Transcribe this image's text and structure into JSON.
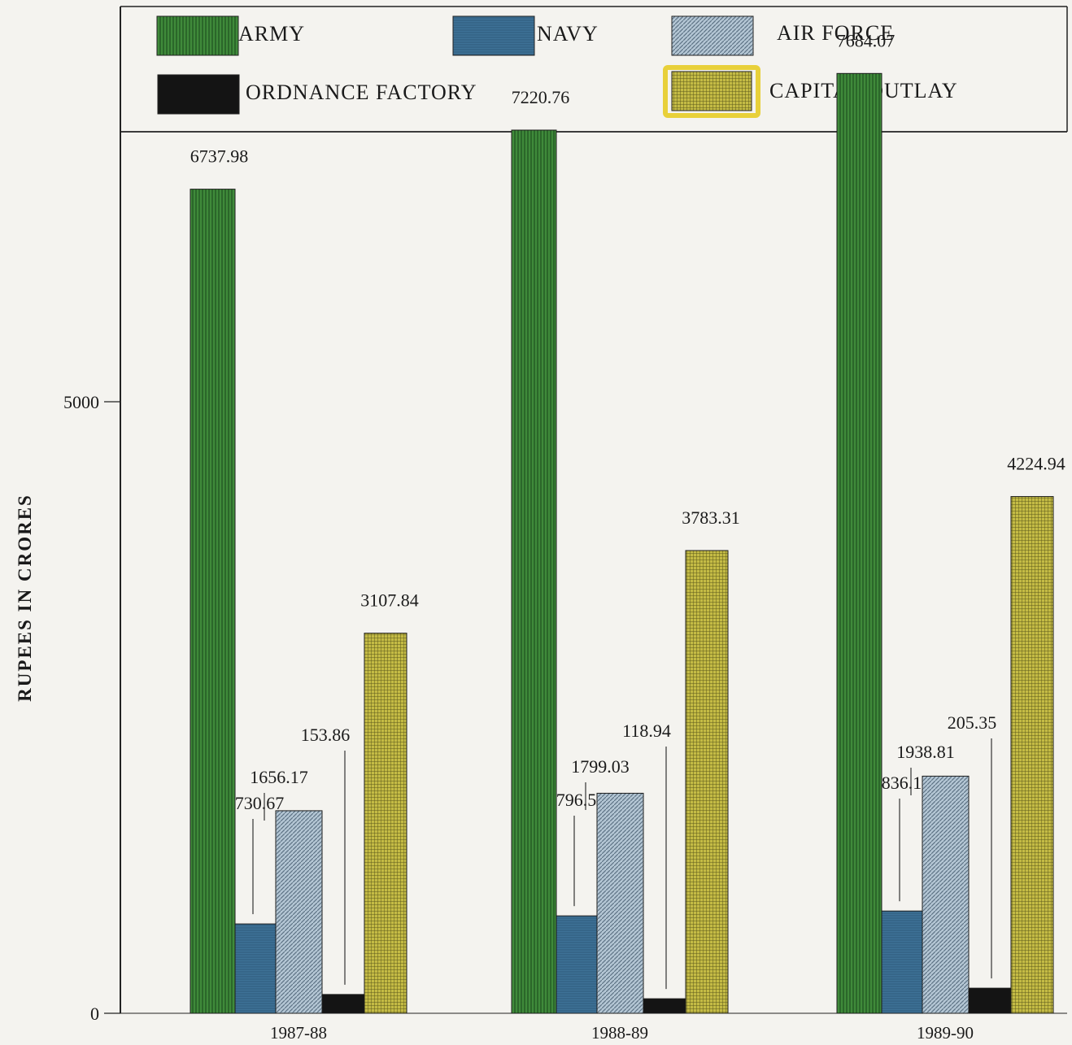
{
  "chart_data": {
    "type": "bar",
    "title": "",
    "xlabel": "",
    "ylabel": "RUPEES IN CRORES",
    "ylim": [
      0,
      8300
    ],
    "yticks": [
      0,
      5000
    ],
    "categories": [
      "1987-88",
      "1988-89",
      "1989-90"
    ],
    "series": [
      {
        "name": "ARMY",
        "color": "#3f8a3a",
        "pattern": "vlines",
        "values": [
          6737.98,
          7220.76,
          7684.07
        ],
        "labels": [
          "6737.98",
          "7220.76",
          "7684.07"
        ]
      },
      {
        "name": "NAVY",
        "color": "#3d7196",
        "pattern": "fine",
        "values": [
          730.67,
          796.51,
          836.14
        ],
        "labels": [
          "730.67",
          "796.51",
          "836.14"
        ]
      },
      {
        "name": "AIR FORCE",
        "color": "#9fb6c9",
        "pattern": "diag",
        "values": [
          1656.17,
          1799.03,
          1938.81
        ],
        "labels": [
          "1656.17",
          "1799.03",
          "1938.81"
        ]
      },
      {
        "name": "ORDNANCE FACTORY",
        "color": "#141414",
        "pattern": "solid",
        "values": [
          153.86,
          118.94,
          205.35
        ],
        "labels": [
          "153.86",
          "118.94",
          "205.35"
        ]
      },
      {
        "name": "CAPITAL OUTLAY",
        "color": "#b7ae3c",
        "pattern": "grid",
        "values": [
          3107.84,
          3783.31,
          4224.94
        ],
        "labels": [
          "3107.84",
          "3783.31",
          "4224.94"
        ]
      }
    ],
    "legend": "top",
    "grid": false
  }
}
